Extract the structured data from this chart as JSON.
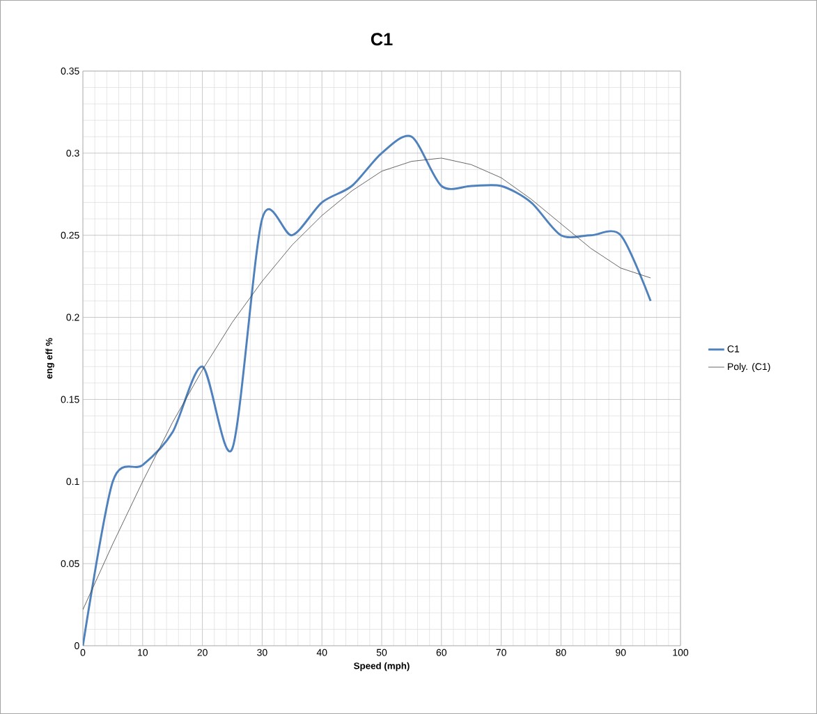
{
  "chart_data": {
    "type": "line",
    "title": "C1",
    "xlabel": "Speed (mph)",
    "ylabel": "eng eff %",
    "x": [
      0,
      5,
      10,
      15,
      20,
      25,
      30,
      35,
      40,
      45,
      50,
      55,
      60,
      65,
      70,
      75,
      80,
      85,
      90,
      95
    ],
    "series": [
      {
        "name": "C1",
        "color": "#4f81bd",
        "values": [
          0,
          0.1,
          0.11,
          0.13,
          0.17,
          0.12,
          0.26,
          0.25,
          0.27,
          0.28,
          0.3,
          0.31,
          0.28,
          0.28,
          0.28,
          0.27,
          0.25,
          0.25,
          0.25,
          0.21
        ]
      },
      {
        "name": "Poly. (C1)",
        "color": "#404040",
        "type": "line",
        "x": [
          0,
          5,
          10,
          15,
          20,
          25,
          30,
          35,
          40,
          45,
          50,
          55,
          60,
          65,
          70,
          75,
          80,
          85,
          90,
          95
        ],
        "values": [
          0.022,
          0.062,
          0.1,
          0.136,
          0.168,
          0.197,
          0.222,
          0.244,
          0.262,
          0.277,
          0.289,
          0.295,
          0.297,
          0.293,
          0.285,
          0.272,
          0.257,
          0.242,
          0.23,
          0.224
        ]
      }
    ],
    "xlim": [
      0,
      100
    ],
    "xticks": [
      0,
      10,
      20,
      30,
      40,
      50,
      60,
      70,
      80,
      90,
      100
    ],
    "ylim": [
      0,
      0.35
    ],
    "yticks": [
      0,
      0.05,
      0.1,
      0.15,
      0.2,
      0.25,
      0.3,
      0.35
    ],
    "grid": true,
    "legend": "right"
  }
}
